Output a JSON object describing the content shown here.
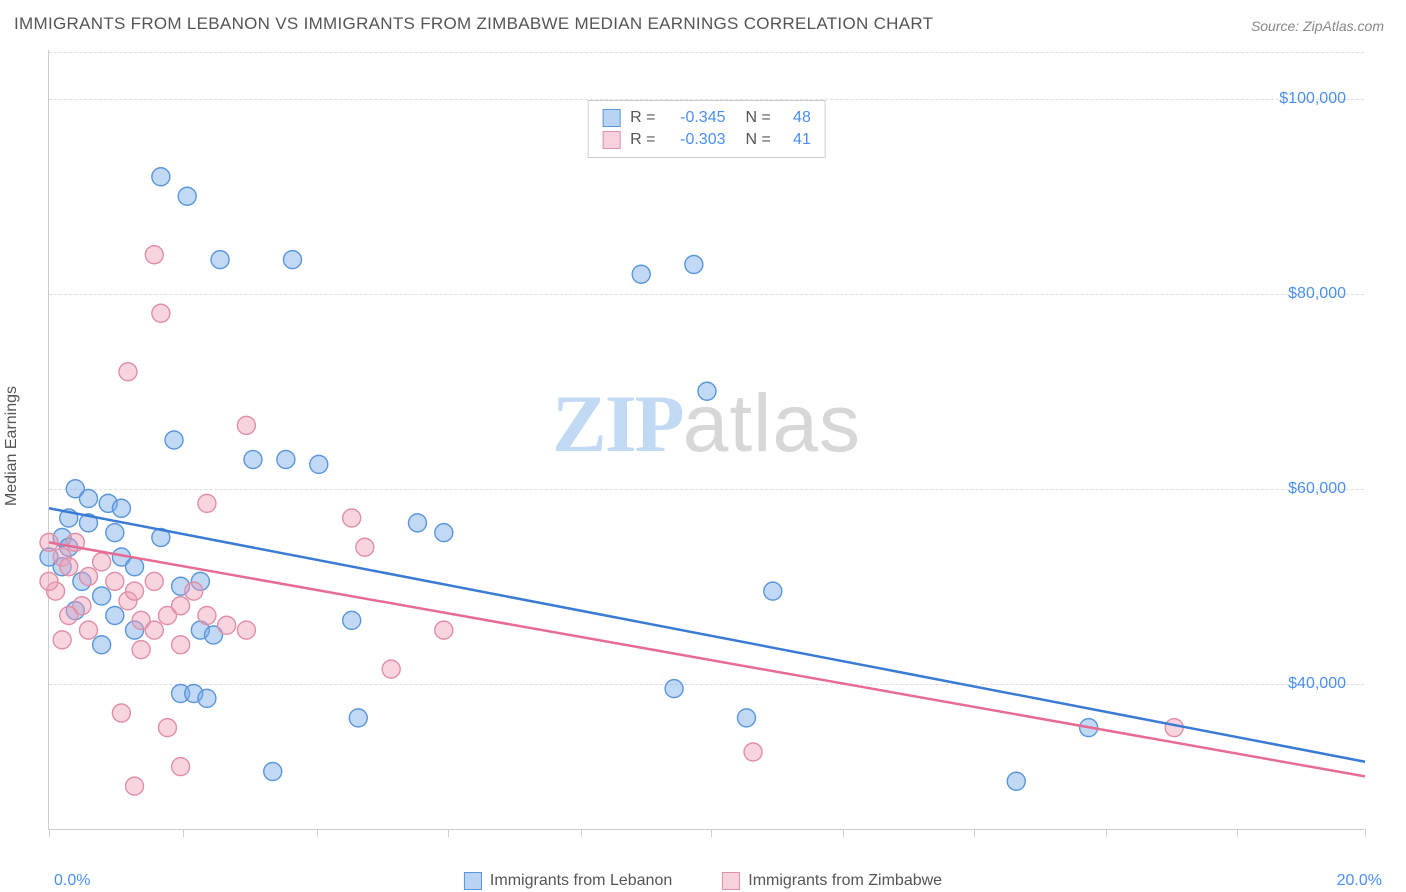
{
  "title": "IMMIGRANTS FROM LEBANON VS IMMIGRANTS FROM ZIMBABWE MEDIAN EARNINGS CORRELATION CHART",
  "source": "Source: ZipAtlas.com",
  "ylabel": "Median Earnings",
  "watermark": {
    "part1": "ZIP",
    "part2": "atlas"
  },
  "chart": {
    "type": "scatter",
    "xlim": [
      0,
      20
    ],
    "ylim": [
      25000,
      105000
    ],
    "xtick_labels": {
      "left": "0.0%",
      "right": "20.0%"
    },
    "xtick_positions_pct": [
      0,
      10.2,
      20.4,
      30.3,
      40.4,
      50.3,
      60.3,
      70.3,
      80.3,
      90.3,
      100
    ],
    "ytick_gridlines": [
      40000,
      60000,
      80000,
      100000
    ],
    "ytick_labels": [
      "$40,000",
      "$60,000",
      "$80,000",
      "$100,000"
    ],
    "background_color": "#ffffff",
    "grid_color": "#dddddd",
    "axis_color": "#cccccc",
    "marker_radius": 9,
    "marker_stroke_width": 1.4,
    "series": [
      {
        "name": "Immigrants from Lebanon",
        "color_fill": "rgba(120,170,235,0.45)",
        "color_stroke": "#5a96da",
        "swatch_fill": "#b9d4f2",
        "swatch_border": "#5a96da",
        "line_color": "#3a7bd5",
        "line_width": 2.5,
        "R": "-0.345",
        "N": "48",
        "trend": {
          "x1": 0,
          "y1": 58000,
          "x2": 20,
          "y2": 32000
        },
        "points": [
          [
            1.7,
            92000
          ],
          [
            2.1,
            90000
          ],
          [
            2.6,
            83500
          ],
          [
            3.7,
            83500
          ],
          [
            9.0,
            82000
          ],
          [
            9.8,
            83000
          ],
          [
            10.0,
            70000
          ],
          [
            1.9,
            65000
          ],
          [
            3.1,
            63000
          ],
          [
            3.6,
            63000
          ],
          [
            4.1,
            62500
          ],
          [
            0.4,
            60000
          ],
          [
            0.6,
            59000
          ],
          [
            0.9,
            58500
          ],
          [
            1.1,
            58000
          ],
          [
            0.3,
            57000
          ],
          [
            0.6,
            56500
          ],
          [
            0.2,
            55000
          ],
          [
            1.0,
            55500
          ],
          [
            1.1,
            53000
          ],
          [
            1.7,
            55000
          ],
          [
            1.3,
            52000
          ],
          [
            0.3,
            54000
          ],
          [
            2.0,
            50000
          ],
          [
            2.3,
            50500
          ],
          [
            5.6,
            56500
          ],
          [
            6.0,
            55500
          ],
          [
            0.2,
            52000
          ],
          [
            0.5,
            50500
          ],
          [
            0.8,
            49000
          ],
          [
            2.3,
            45500
          ],
          [
            2.5,
            45000
          ],
          [
            2.0,
            39000
          ],
          [
            2.2,
            39000
          ],
          [
            2.4,
            38500
          ],
          [
            4.6,
            46500
          ],
          [
            4.7,
            36500
          ],
          [
            9.5,
            39500
          ],
          [
            10.6,
            36500
          ],
          [
            11.0,
            49500
          ],
          [
            14.7,
            30000
          ],
          [
            3.4,
            31000
          ],
          [
            15.8,
            35500
          ],
          [
            1.0,
            47000
          ],
          [
            1.3,
            45500
          ],
          [
            0.4,
            47500
          ],
          [
            0.8,
            44000
          ],
          [
            0.0,
            53000
          ]
        ]
      },
      {
        "name": "Immigrants from Zimbabwe",
        "color_fill": "rgba(240,160,185,0.45)",
        "color_stroke": "#e08fa8",
        "swatch_fill": "#f7d1dc",
        "swatch_border": "#e08fa8",
        "line_color": "#e86b92",
        "line_width": 2.5,
        "R": "-0.303",
        "N": "41",
        "trend": {
          "x1": 0,
          "y1": 54500,
          "x2": 20,
          "y2": 30500
        },
        "points": [
          [
            1.6,
            84000
          ],
          [
            1.7,
            78000
          ],
          [
            1.2,
            72000
          ],
          [
            3.0,
            66500
          ],
          [
            2.4,
            58500
          ],
          [
            4.6,
            57000
          ],
          [
            4.8,
            54000
          ],
          [
            0.0,
            54500
          ],
          [
            0.2,
            53000
          ],
          [
            0.3,
            52000
          ],
          [
            0.4,
            54500
          ],
          [
            0.6,
            51000
          ],
          [
            0.8,
            52500
          ],
          [
            1.0,
            50500
          ],
          [
            1.2,
            48500
          ],
          [
            1.4,
            46500
          ],
          [
            1.3,
            49500
          ],
          [
            1.6,
            50500
          ],
          [
            1.8,
            47000
          ],
          [
            1.6,
            45500
          ],
          [
            2.0,
            48000
          ],
          [
            2.2,
            49500
          ],
          [
            2.4,
            47000
          ],
          [
            2.7,
            46000
          ],
          [
            3.0,
            45500
          ],
          [
            2.0,
            44000
          ],
          [
            1.4,
            43500
          ],
          [
            1.1,
            37000
          ],
          [
            1.8,
            35500
          ],
          [
            1.3,
            29500
          ],
          [
            2.0,
            31500
          ],
          [
            5.2,
            41500
          ],
          [
            6.0,
            45500
          ],
          [
            10.7,
            33000
          ],
          [
            17.1,
            35500
          ],
          [
            0.1,
            49500
          ],
          [
            0.5,
            48000
          ],
          [
            0.0,
            50500
          ],
          [
            0.3,
            47000
          ],
          [
            0.6,
            45500
          ],
          [
            0.2,
            44500
          ]
        ]
      }
    ]
  },
  "legend_bottom": [
    {
      "label": "Immigrants from Lebanon",
      "fill": "#b9d4f2",
      "border": "#5a96da"
    },
    {
      "label": "Immigrants from Zimbabwe",
      "fill": "#f7d1dc",
      "border": "#e08fa8"
    }
  ]
}
